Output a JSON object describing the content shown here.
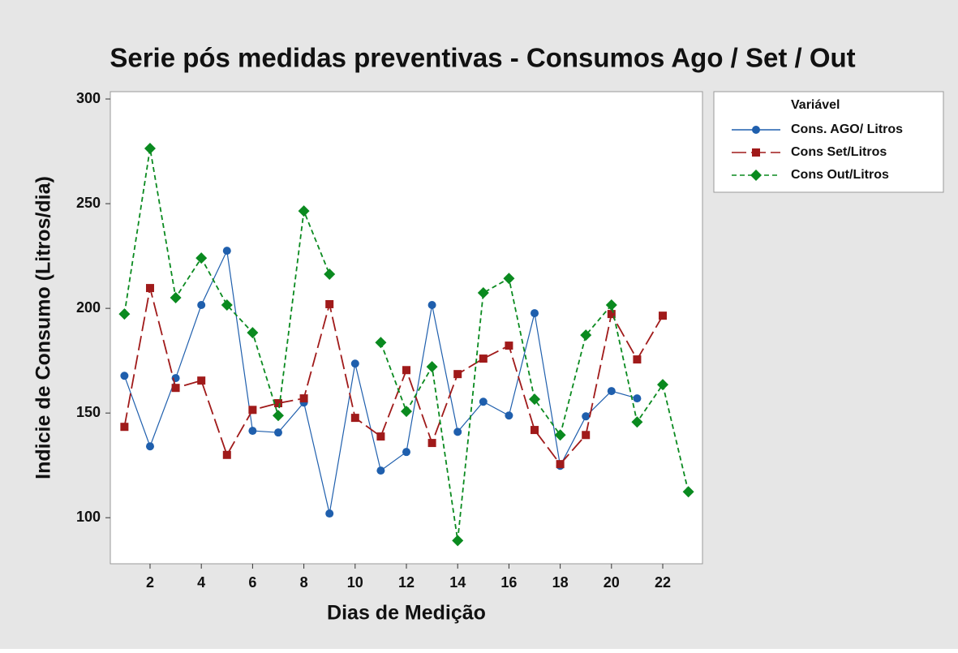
{
  "chart_data": {
    "type": "line",
    "title": "Serie pós medidas preventivas - Consumos Ago / Set / Out",
    "x_label": "Dias de Medição",
    "y_label": "Indicie de Consumo (Litros/dia)",
    "legend_title": "Variável",
    "legend": "right",
    "x": [
      1,
      2,
      3,
      4,
      5,
      6,
      7,
      8,
      9,
      10,
      11,
      12,
      13,
      14,
      15,
      16,
      17,
      18,
      19,
      20,
      21,
      22,
      23
    ],
    "xlim": [
      0.45,
      23.55
    ],
    "xticks": [
      2,
      4,
      6,
      8,
      10,
      12,
      14,
      16,
      18,
      20,
      22
    ],
    "ylim": [
      78,
      303.5
    ],
    "yticks": [
      100,
      150,
      200,
      250,
      300
    ],
    "series": [
      {
        "name": "Cons. AGO/ Litros",
        "color": "#1f5fad",
        "marker": "circle",
        "dash": "solid",
        "values": [
          167.8,
          134.1,
          166.7,
          201.6,
          227.5,
          141.5,
          140.7,
          155,
          102,
          173.6,
          122.5,
          131.4,
          201.6,
          141,
          155.4,
          148.8,
          197.7,
          124.8,
          148.4,
          160.5,
          157,
          null,
          null
        ]
      },
      {
        "name": "Cons Set/Litros",
        "color": "#a01a1a",
        "marker": "square",
        "dash": "long",
        "values": [
          143.4,
          209.7,
          162,
          165.5,
          130,
          151.5,
          154.7,
          157,
          202,
          147.7,
          138.8,
          170.5,
          135.7,
          168.6,
          176,
          182.2,
          141.9,
          125.6,
          139.5,
          197.3,
          175.6,
          196.5,
          null
        ]
      },
      {
        "name": "Cons Out/Litros",
        "color": "#0a8a1f",
        "marker": "diamond",
        "dash": "short",
        "values": [
          197.3,
          276.4,
          205.1,
          224,
          201.6,
          188.4,
          148.8,
          246.5,
          216.3,
          null,
          183.7,
          150.8,
          172.1,
          89.1,
          207.4,
          214.3,
          156.6,
          139.5,
          187.2,
          201.6,
          145.7,
          163.6,
          112.4
        ]
      }
    ]
  }
}
